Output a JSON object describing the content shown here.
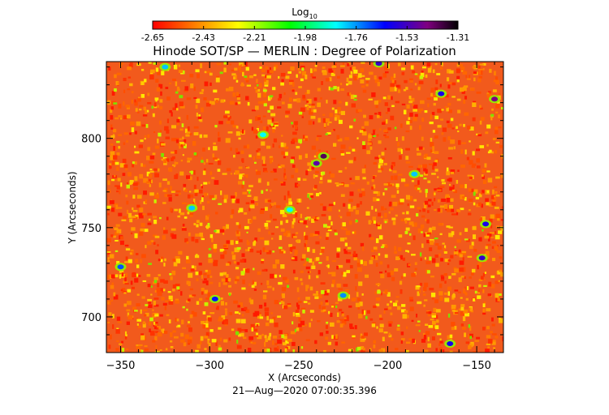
{
  "colorbar": {
    "label_main": "Log",
    "label_sub": "10",
    "ticks": [
      "-2.65",
      "-2.43",
      "-2.21",
      "-1.98",
      "-1.76",
      "-1.53",
      "-1.31"
    ],
    "range": [
      -2.65,
      -1.31
    ],
    "colors": [
      "#ff0000",
      "#ff8000",
      "#ffff00",
      "#00ff00",
      "#00ffff",
      "#0000ff",
      "#800080",
      "#000000"
    ]
  },
  "chart_data": {
    "type": "heatmap",
    "title": "Hinode SOT/SP — MERLIN : Degree of Polarization",
    "xlabel": "X (Arcseconds)",
    "ylabel": "Y (Arcseconds)",
    "footer": "21—Aug—2020 07:00:35.396",
    "xlim": [
      -358,
      -135
    ],
    "ylim": [
      680,
      843
    ],
    "x_ticks": [
      -350,
      -300,
      -250,
      -200,
      -150
    ],
    "x_tick_labels": [
      "−350",
      "−300",
      "−250",
      "−200",
      "−150"
    ],
    "y_ticks": [
      700,
      750,
      800
    ],
    "y_tick_labels": [
      "700",
      "750",
      "800"
    ],
    "value_unit": "log10 degree of polarization",
    "background_level": -2.55,
    "features": [
      {
        "x": -236,
        "y": 790,
        "value": -1.4
      },
      {
        "x": -240,
        "y": 786,
        "value": -1.5
      },
      {
        "x": -170,
        "y": 825,
        "value": -1.6
      },
      {
        "x": -145,
        "y": 752,
        "value": -1.6
      },
      {
        "x": -147,
        "y": 733,
        "value": -1.55
      },
      {
        "x": -205,
        "y": 842,
        "value": -1.55
      },
      {
        "x": -297,
        "y": 710,
        "value": -1.65
      },
      {
        "x": -255,
        "y": 760,
        "value": -1.85
      },
      {
        "x": -325,
        "y": 840,
        "value": -1.8
      },
      {
        "x": -140,
        "y": 822,
        "value": -1.45
      },
      {
        "x": -165,
        "y": 685,
        "value": -1.6
      },
      {
        "x": -225,
        "y": 712,
        "value": -1.75
      },
      {
        "x": -350,
        "y": 728,
        "value": -1.7
      },
      {
        "x": -185,
        "y": 780,
        "value": -1.8
      },
      {
        "x": -270,
        "y": 802,
        "value": -1.85
      },
      {
        "x": -310,
        "y": 761,
        "value": -1.8
      }
    ]
  }
}
